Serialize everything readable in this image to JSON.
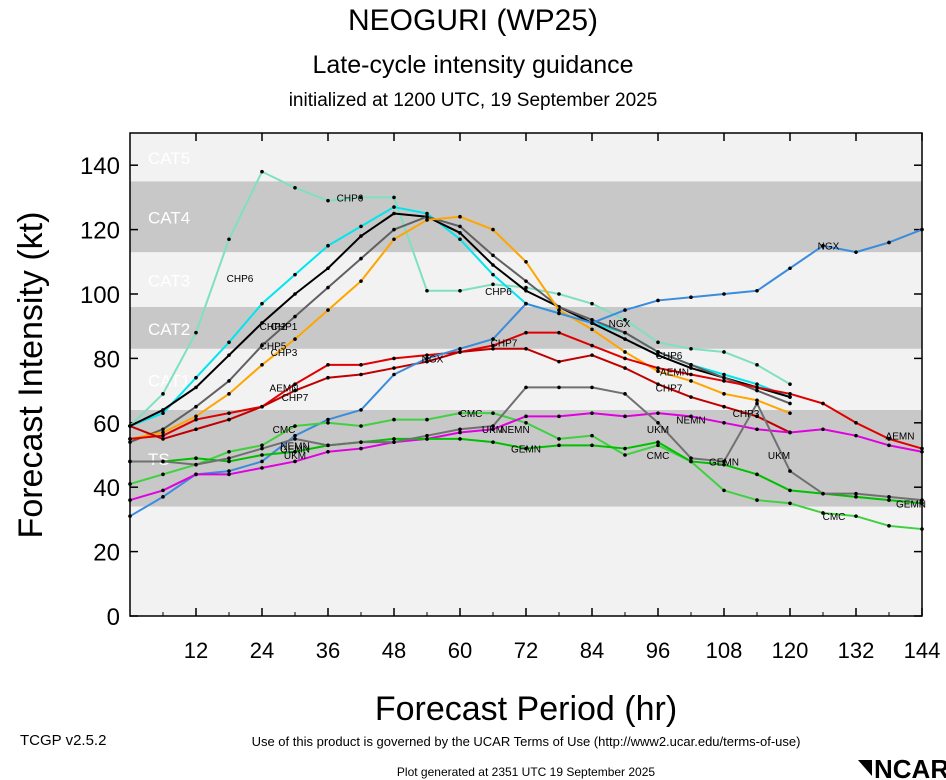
{
  "header": {
    "title": "NEOGURI (WP25)",
    "subtitle": "Late-cycle intensity guidance",
    "init": "initialized at 1200 UTC, 19 September 2025"
  },
  "footer": {
    "version": "TCGP v2.5.2",
    "terms": "Use of this product is governed by the UCAR Terms of Use (http://www2.ucar.edu/terms-of-use)",
    "generated": "Plot generated at 2351 UTC   19 September 2025",
    "logo": "NCAR"
  },
  "chart_data": {
    "type": "line",
    "title": "NEOGURI (WP25)",
    "subtitle": "Late-cycle intensity guidance",
    "xlabel": "Forecast Period (hr)",
    "ylabel": "Forecast Intensity (kt)",
    "xlim": [
      0,
      144
    ],
    "ylim": [
      0,
      150
    ],
    "xticks": [
      12,
      24,
      36,
      48,
      60,
      72,
      84,
      96,
      108,
      120,
      132,
      144
    ],
    "yticks": [
      0,
      20,
      40,
      60,
      80,
      100,
      120,
      140
    ],
    "bands": [
      {
        "label": "TS",
        "min": 34,
        "max": 64,
        "color": "#c8c8c8"
      },
      {
        "label": "CAT1",
        "min": 64,
        "max": 83,
        "color": "#f2f2f2"
      },
      {
        "label": "CAT2",
        "min": 83,
        "max": 96,
        "color": "#c8c8c8"
      },
      {
        "label": "CAT3",
        "min": 96,
        "max": 113,
        "color": "#f2f2f2"
      },
      {
        "label": "CAT4",
        "min": 113,
        "max": 135,
        "color": "#c8c8c8"
      },
      {
        "label": "CAT5",
        "min": 135,
        "max": 150,
        "color": "#f2f2f2"
      }
    ],
    "series": [
      {
        "name": "CHP6",
        "color": "#7fe0c0",
        "label_at": [
          [
            20,
            105
          ],
          [
            40,
            130
          ],
          [
            67,
            101
          ],
          [
            98,
            81
          ]
        ],
        "x": [
          0,
          6,
          12,
          18,
          24,
          30,
          36,
          42,
          48,
          54,
          60,
          66,
          72,
          78,
          84,
          90,
          96,
          102,
          108,
          114,
          120
        ],
        "values": [
          59,
          69,
          88,
          117,
          138,
          133,
          129,
          130,
          130,
          101,
          101,
          103,
          102,
          100,
          97,
          92,
          85,
          83,
          82,
          78,
          72
        ]
      },
      {
        "name": "CHP2",
        "color": "#00e5ee",
        "label_at": [
          [
            26,
            90
          ]
        ],
        "x": [
          0,
          6,
          12,
          18,
          24,
          30,
          36,
          42,
          48,
          54,
          60,
          66,
          72,
          78,
          84,
          90,
          96,
          102,
          108,
          114,
          120
        ],
        "values": [
          59,
          63,
          74,
          85,
          97,
          106,
          115,
          121,
          127,
          125,
          117,
          106,
          97,
          94,
          91,
          88,
          82,
          78,
          75,
          72,
          68
        ]
      },
      {
        "name": "CHP1",
        "color": "#000000",
        "label_at": [
          [
            28,
            90
          ]
        ],
        "x": [
          0,
          6,
          12,
          18,
          24,
          30,
          36,
          42,
          48,
          54,
          60,
          66,
          72,
          78,
          84,
          90,
          96,
          102,
          108,
          114,
          120
        ],
        "values": [
          59,
          64,
          71,
          81,
          91,
          100,
          108,
          118,
          125,
          124,
          119,
          109,
          101,
          96,
          91,
          86,
          81,
          77,
          74,
          71,
          68
        ]
      },
      {
        "name": "CHP5",
        "color": "#606060",
        "label_at": [
          [
            26,
            84
          ]
        ],
        "x": [
          0,
          6,
          12,
          18,
          24,
          30,
          36,
          42,
          48,
          54,
          60,
          66,
          72,
          78,
          84,
          90,
          96,
          102,
          108,
          114,
          120
        ],
        "values": [
          54,
          58,
          65,
          73,
          84,
          93,
          102,
          111,
          120,
          124,
          121,
          112,
          104,
          96,
          92,
          88,
          82,
          78,
          74,
          70,
          66
        ]
      },
      {
        "name": "CHP3",
        "color": "#ffa500",
        "label_at": [
          [
            28,
            82
          ],
          [
            112,
            63
          ]
        ],
        "x": [
          0,
          6,
          12,
          18,
          24,
          30,
          36,
          42,
          48,
          54,
          60,
          66,
          72,
          78,
          84,
          90,
          96,
          102,
          108,
          114,
          120
        ],
        "values": [
          55,
          57,
          62,
          69,
          78,
          86,
          95,
          104,
          117,
          123,
          124,
          120,
          110,
          95,
          89,
          82,
          76,
          73,
          69,
          67,
          63
        ]
      },
      {
        "name": "AEMN",
        "color": "#e00000",
        "label_at": [
          [
            28,
            71
          ],
          [
            99,
            76
          ],
          [
            140,
            56
          ]
        ],
        "x": [
          0,
          6,
          12,
          18,
          24,
          30,
          36,
          42,
          48,
          54,
          60,
          66,
          72,
          78,
          84,
          90,
          96,
          102,
          108,
          114,
          120,
          126,
          132,
          138,
          144
        ],
        "values": [
          55,
          56,
          61,
          63,
          65,
          72,
          78,
          78,
          80,
          81,
          82,
          84,
          88,
          88,
          84,
          80,
          77,
          75,
          73,
          71,
          69,
          66,
          60,
          55,
          52
        ]
      },
      {
        "name": "CHP7",
        "color": "#c00000",
        "label_at": [
          [
            30,
            68
          ],
          [
            68,
            85
          ],
          [
            98,
            71
          ]
        ],
        "x": [
          0,
          6,
          12,
          18,
          24,
          30,
          36,
          42,
          48,
          54,
          60,
          66,
          72,
          78,
          84,
          90,
          96,
          102,
          108,
          114,
          120
        ],
        "values": [
          59,
          55,
          58,
          61,
          65,
          70,
          74,
          75,
          77,
          79,
          82,
          83,
          83,
          79,
          81,
          77,
          72,
          68,
          65,
          62,
          57
        ]
      },
      {
        "name": "NGX",
        "color": "#3c8cdc",
        "label_at": [
          [
            55,
            80
          ],
          [
            89,
            91
          ],
          [
            127,
            115
          ]
        ],
        "x": [
          0,
          6,
          12,
          18,
          24,
          30,
          36,
          42,
          48,
          54,
          60,
          66,
          72,
          78,
          84,
          90,
          96,
          102,
          108,
          114,
          120,
          126,
          132,
          138,
          144
        ],
        "values": [
          31,
          37,
          44,
          45,
          48,
          56,
          61,
          64,
          75,
          80,
          83,
          86,
          97,
          94,
          91,
          95,
          98,
          99,
          100,
          101,
          108,
          115,
          113,
          116,
          120
        ]
      },
      {
        "name": "CMC",
        "color": "#40d040",
        "label_at": [
          [
            28,
            58
          ],
          [
            62,
            63
          ],
          [
            96,
            50
          ],
          [
            128,
            31
          ]
        ],
        "x": [
          0,
          6,
          12,
          18,
          24,
          30,
          36,
          42,
          48,
          54,
          60,
          66,
          72,
          78,
          84,
          90,
          96,
          102,
          108,
          114,
          120,
          126,
          132,
          138,
          144
        ],
        "values": [
          41,
          44,
          47,
          51,
          53,
          59,
          60,
          59,
          61,
          61,
          63,
          63,
          60,
          55,
          56,
          50,
          53,
          48,
          39,
          36,
          35,
          32,
          31,
          28,
          27
        ]
      },
      {
        "name": "NEMN",
        "color": "#e000e0",
        "label_at": [
          [
            30,
            53
          ],
          [
            70,
            58
          ],
          [
            102,
            61
          ]
        ],
        "x": [
          0,
          6,
          12,
          18,
          24,
          30,
          36,
          42,
          48,
          54,
          60,
          66,
          72,
          78,
          84,
          90,
          96,
          102,
          108,
          114,
          120,
          126,
          132,
          138,
          144
        ],
        "values": [
          36,
          39,
          44,
          44,
          46,
          48,
          51,
          52,
          54,
          55,
          57,
          58,
          62,
          62,
          63,
          62,
          63,
          62,
          60,
          58,
          57,
          58,
          56,
          53,
          51
        ]
      },
      {
        "name": "GEMN",
        "color": "#00c000",
        "label_at": [
          [
            30,
            52
          ],
          [
            72,
            52
          ],
          [
            108,
            48
          ],
          [
            142,
            35
          ]
        ],
        "x": [
          0,
          6,
          12,
          18,
          24,
          30,
          36,
          42,
          48,
          54,
          60,
          66,
          72,
          78,
          84,
          90,
          96,
          102,
          108,
          114,
          120,
          126,
          132,
          138,
          144
        ],
        "values": [
          48,
          48,
          49,
          48,
          50,
          51,
          53,
          54,
          55,
          55,
          55,
          54,
          52,
          53,
          53,
          52,
          54,
          48,
          47,
          44,
          39,
          38,
          37,
          36,
          35
        ]
      },
      {
        "name": "UKM",
        "color": "#707070",
        "label_at": [
          [
            30,
            50
          ],
          [
            66,
            58
          ],
          [
            96,
            58
          ],
          [
            118,
            50
          ]
        ],
        "x": [
          0,
          6,
          12,
          18,
          24,
          30,
          36,
          42,
          48,
          54,
          60,
          66,
          72,
          78,
          84,
          90,
          96,
          102,
          108,
          114,
          120,
          126,
          132,
          138,
          144
        ],
        "values": [
          48,
          48,
          47,
          49,
          52,
          55,
          53,
          54,
          54,
          56,
          58,
          59,
          71,
          71,
          71,
          69,
          60,
          49,
          48,
          66,
          45,
          38,
          38,
          37,
          36
        ]
      }
    ]
  }
}
